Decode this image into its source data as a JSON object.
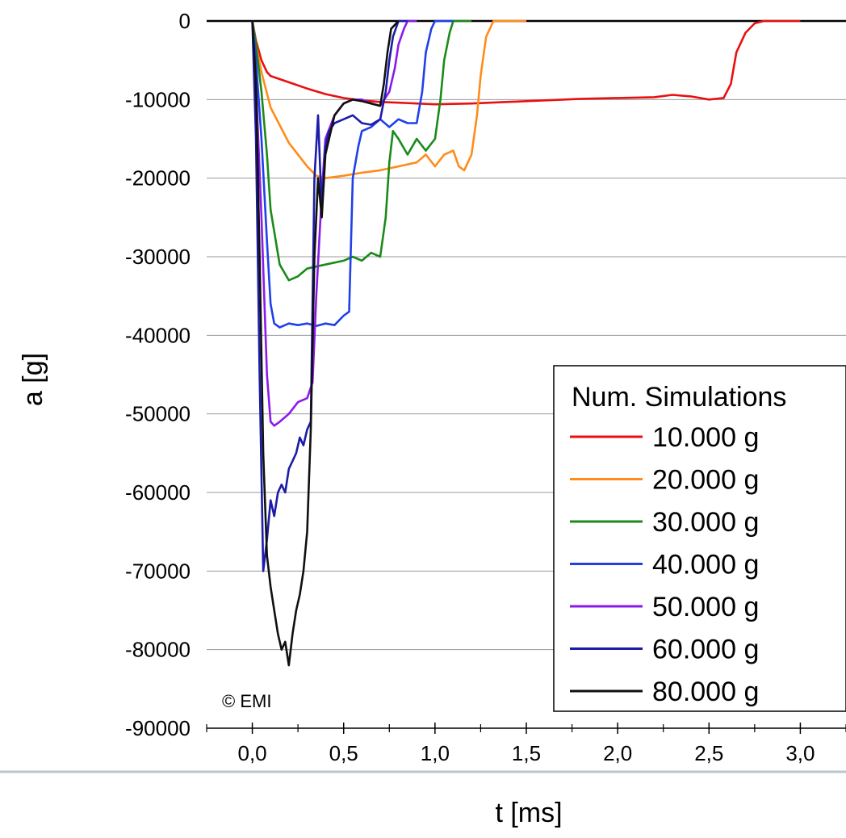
{
  "chart_data": {
    "type": "line",
    "title": "",
    "xlabel": "t [ms]",
    "ylabel": "a [g]",
    "xlim": [
      -0.25,
      3.25
    ],
    "ylim": [
      -90000,
      0
    ],
    "x_ticks": [
      0.0,
      0.5,
      1.0,
      1.5,
      2.0,
      2.5,
      3.0
    ],
    "x_tick_labels": [
      "0,0",
      "0,5",
      "1,0",
      "1,5",
      "2,0",
      "2,5",
      "3,0"
    ],
    "y_ticks": [
      0,
      -10000,
      -20000,
      -30000,
      -40000,
      -50000,
      -60000,
      -70000,
      -80000,
      -90000
    ],
    "y_tick_labels": [
      "0",
      "-10000",
      "-20000",
      "-30000",
      "-40000",
      "-50000",
      "-60000",
      "-70000",
      "-80000",
      "-90000"
    ],
    "grid": "horizontal",
    "legend": {
      "title": "Num. Simulations",
      "position": "bottom-right"
    },
    "annotation": "© EMI",
    "series": [
      {
        "name": "10.000 g",
        "color": "#e81010",
        "x": [
          0,
          0.02,
          0.05,
          0.08,
          0.1,
          0.2,
          0.3,
          0.4,
          0.5,
          0.6,
          0.7,
          0.8,
          0.9,
          1.0,
          1.2,
          1.5,
          1.8,
          2.0,
          2.2,
          2.3,
          2.4,
          2.5,
          2.58,
          2.62,
          2.65,
          2.7,
          2.75,
          2.8,
          3.0
        ],
        "y": [
          0,
          -2500,
          -5000,
          -6500,
          -7000,
          -7800,
          -8600,
          -9300,
          -9800,
          -10100,
          -10300,
          -10400,
          -10500,
          -10600,
          -10500,
          -10200,
          -9900,
          -9800,
          -9700,
          -9400,
          -9600,
          -10000,
          -9800,
          -8000,
          -4000,
          -1500,
          -300,
          0,
          0
        ]
      },
      {
        "name": "20.000 g",
        "color": "#ff8c1a",
        "x": [
          0,
          0.02,
          0.05,
          0.1,
          0.2,
          0.3,
          0.35,
          0.4,
          0.5,
          0.6,
          0.7,
          0.8,
          0.9,
          0.95,
          1.0,
          1.05,
          1.1,
          1.13,
          1.16,
          1.2,
          1.23,
          1.25,
          1.28,
          1.32,
          1.5
        ],
        "y": [
          0,
          -3000,
          -6500,
          -11000,
          -15500,
          -18500,
          -19700,
          -20000,
          -19700,
          -19300,
          -19000,
          -18500,
          -18000,
          -17000,
          -18500,
          -17000,
          -16500,
          -18500,
          -19000,
          -17000,
          -12000,
          -7000,
          -2000,
          0,
          0
        ]
      },
      {
        "name": "30.000 g",
        "color": "#1a8a1a",
        "x": [
          0,
          0.02,
          0.05,
          0.08,
          0.1,
          0.15,
          0.2,
          0.25,
          0.3,
          0.4,
          0.5,
          0.55,
          0.6,
          0.65,
          0.7,
          0.73,
          0.75,
          0.77,
          0.8,
          0.85,
          0.9,
          0.95,
          1.0,
          1.03,
          1.05,
          1.08,
          1.1,
          1.2
        ],
        "y": [
          0,
          -3000,
          -9000,
          -17000,
          -24000,
          -31000,
          -33000,
          -32500,
          -31500,
          -31000,
          -30500,
          -30000,
          -30500,
          -29500,
          -30000,
          -25000,
          -18000,
          -14000,
          -15000,
          -17000,
          -15000,
          -16500,
          -15000,
          -10000,
          -5000,
          -1500,
          0,
          0
        ]
      },
      {
        "name": "40.000 g",
        "color": "#2040e8",
        "x": [
          0,
          0.02,
          0.05,
          0.08,
          0.1,
          0.12,
          0.15,
          0.2,
          0.25,
          0.3,
          0.35,
          0.4,
          0.45,
          0.5,
          0.53,
          0.55,
          0.58,
          0.6,
          0.65,
          0.7,
          0.75,
          0.8,
          0.85,
          0.9,
          0.93,
          0.95,
          0.98,
          1.0,
          1.1
        ],
        "y": [
          0,
          -5000,
          -15000,
          -28000,
          -36000,
          -38500,
          -39000,
          -38500,
          -38700,
          -38500,
          -38800,
          -38500,
          -38700,
          -37500,
          -37000,
          -20000,
          -16000,
          -14000,
          -13500,
          -12500,
          -13500,
          -12500,
          -13000,
          -13000,
          -9000,
          -4000,
          -1000,
          0,
          0
        ]
      },
      {
        "name": "50.000 g",
        "color": "#8a1ae8",
        "x": [
          0,
          0.02,
          0.05,
          0.08,
          0.1,
          0.12,
          0.15,
          0.2,
          0.25,
          0.3,
          0.33,
          0.35,
          0.38,
          0.4,
          0.45,
          0.5,
          0.55,
          0.6,
          0.65,
          0.7,
          0.75,
          0.78,
          0.8,
          0.83,
          0.85,
          0.9
        ],
        "y": [
          0,
          -8000,
          -25000,
          -45000,
          -51000,
          -51500,
          -51000,
          -50000,
          -48500,
          -48000,
          -46000,
          -35000,
          -22000,
          -15000,
          -12000,
          -10500,
          -10000,
          -10000,
          -10500,
          -10800,
          -9000,
          -6000,
          -3000,
          -1000,
          0,
          0
        ]
      },
      {
        "name": "60.000 g",
        "color": "#1c1ca8",
        "x": [
          0,
          0.02,
          0.04,
          0.06,
          0.08,
          0.1,
          0.12,
          0.14,
          0.16,
          0.18,
          0.2,
          0.22,
          0.24,
          0.26,
          0.28,
          0.3,
          0.32,
          0.34,
          0.36,
          0.38,
          0.4,
          0.42,
          0.45,
          0.5,
          0.55,
          0.6,
          0.65,
          0.7,
          0.73,
          0.75,
          0.77,
          0.8,
          0.85
        ],
        "y": [
          0,
          -15000,
          -45000,
          -70000,
          -66000,
          -61000,
          -63000,
          -60000,
          -59000,
          -60000,
          -57000,
          -56000,
          -55000,
          -53000,
          -54000,
          -52000,
          -51000,
          -20000,
          -12000,
          -24000,
          -16000,
          -14000,
          -13000,
          -12500,
          -12000,
          -13000,
          -13200,
          -12500,
          -9000,
          -5000,
          -2000,
          0,
          0
        ]
      },
      {
        "name": "80.000 g",
        "color": "#101010",
        "x": [
          0,
          0.02,
          0.04,
          0.06,
          0.08,
          0.1,
          0.12,
          0.14,
          0.16,
          0.18,
          0.2,
          0.22,
          0.24,
          0.26,
          0.28,
          0.3,
          0.32,
          0.34,
          0.36,
          0.38,
          0.4,
          0.45,
          0.5,
          0.55,
          0.6,
          0.65,
          0.7,
          0.72,
          0.74,
          0.76,
          0.8
        ],
        "y": [
          0,
          -8000,
          -30000,
          -55000,
          -68000,
          -72000,
          -75000,
          -78000,
          -80000,
          -79000,
          -82000,
          -78000,
          -75000,
          -73000,
          -70000,
          -65000,
          -52000,
          -30000,
          -20000,
          -25000,
          -17000,
          -12000,
          -10500,
          -10000,
          -10200,
          -10500,
          -10800,
          -8000,
          -4000,
          -1000,
          0
        ]
      }
    ]
  }
}
